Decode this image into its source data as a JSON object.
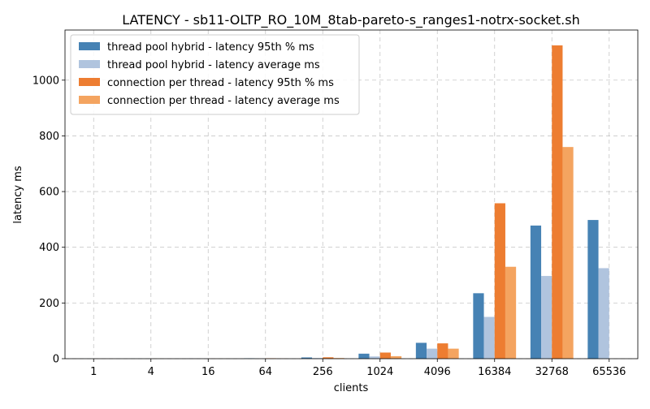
{
  "chart_data": {
    "type": "bar",
    "title": "LATENCY - sb11-OLTP_RO_10M_8tab-pareto-s_ranges1-notrx-socket.sh",
    "xlabel": "clients",
    "ylabel": "latency ms",
    "categories": [
      "1",
      "4",
      "16",
      "64",
      "256",
      "1024",
      "4096",
      "16384",
      "32768",
      "65536"
    ],
    "ylim": [
      0,
      1180
    ],
    "yticks": [
      0,
      200,
      400,
      600,
      800,
      1000
    ],
    "grid": true,
    "legend_position": "upper left",
    "series": [
      {
        "name": "thread pool hybrid - latency 95th % ms",
        "color": "#4682b4",
        "values": [
          0.1,
          0.2,
          0.3,
          1.5,
          4.5,
          18,
          57,
          235,
          478,
          498
        ]
      },
      {
        "name": "thread pool hybrid - latency average ms",
        "color": "#b0c4de",
        "values": [
          0.1,
          0.1,
          0.2,
          0.7,
          2.3,
          8,
          36,
          150,
          297,
          325
        ]
      },
      {
        "name": "connection per thread - latency 95th % ms",
        "color": "#ed7d31",
        "values": [
          0.1,
          0.2,
          0.3,
          1.5,
          5,
          22,
          55,
          558,
          1125,
          null
        ]
      },
      {
        "name": "connection per thread - latency average ms",
        "color": "#f4a460",
        "values": [
          0.1,
          0.1,
          0.2,
          0.7,
          2.3,
          9,
          36,
          330,
          760,
          null
        ]
      }
    ]
  }
}
